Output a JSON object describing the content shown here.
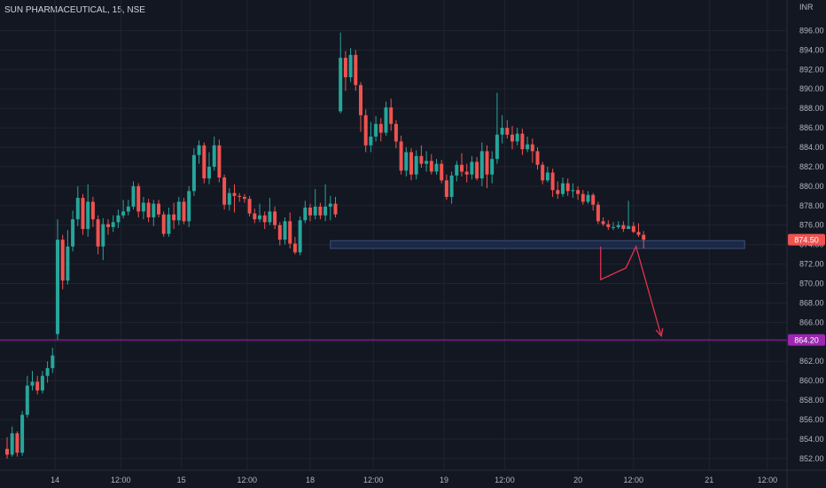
{
  "header": {
    "title": "SUN PHARMACEUTICAL, 15, NSE"
  },
  "colors": {
    "background": "#131722",
    "up": "#26a69a",
    "down": "#ef5350",
    "grid": "#1f2430",
    "axis_text": "#b2b5be",
    "support_zone": "#1e2a48",
    "support_border": "#3a4f80",
    "line_864": "#9c27b0",
    "projection": "#e0334f"
  },
  "chart_data": {
    "type": "candlestick",
    "currency": "INR",
    "ylim": [
      850.8,
      897.5
    ],
    "y_ticks": [
      "896.00",
      "894.00",
      "892.00",
      "890.00",
      "888.00",
      "886.00",
      "884.00",
      "882.00",
      "880.00",
      "878.00",
      "876.00",
      "874.00",
      "872.00",
      "870.00",
      "868.00",
      "866.00",
      "864.00",
      "862.00",
      "860.00",
      "858.00",
      "856.00",
      "854.00",
      "852.00"
    ],
    "x_ticks": [
      {
        "label": "14",
        "index": 9.5
      },
      {
        "label": "12:00",
        "index": 22.5
      },
      {
        "label": "15",
        "index": 34.5
      },
      {
        "label": "12:00",
        "index": 47.5
      },
      {
        "label": "18",
        "index": 60
      },
      {
        "label": "12:00",
        "index": 72.5
      },
      {
        "label": "19",
        "index": 86.5
      },
      {
        "label": "12:00",
        "index": 98.5
      },
      {
        "label": "20",
        "index": 113
      },
      {
        "label": "12:00",
        "index": 124
      },
      {
        "label": "21",
        "index": 139
      },
      {
        "label": "12:00",
        "index": 150.5
      }
    ],
    "candles": [
      [
        853,
        852.4,
        854.2,
        852
      ],
      [
        852.4,
        854.6,
        855.3,
        852.2
      ],
      [
        854.6,
        852.6,
        854.8,
        852.2
      ],
      [
        852.6,
        856.5,
        856.9,
        852.3
      ],
      [
        856.5,
        859.5,
        860.5,
        856.2
      ],
      [
        859.5,
        859.9,
        861,
        859
      ],
      [
        859.9,
        859,
        860.5,
        858.6
      ],
      [
        859,
        860.5,
        861,
        858.7
      ],
      [
        860.5,
        861.3,
        862,
        859.8
      ],
      [
        861.3,
        862.6,
        863.4,
        860.8
      ],
      [
        864.8,
        874.5,
        876.6,
        864.2
      ],
      [
        874.5,
        870.3,
        875,
        869.4
      ],
      [
        870.3,
        873.8,
        875.5,
        869.9
      ],
      [
        873.8,
        876.6,
        877.5,
        873.3
      ],
      [
        876.6,
        878.8,
        880,
        875.9
      ],
      [
        878.8,
        875.6,
        879.2,
        875
      ],
      [
        875.6,
        878.4,
        880.2,
        874.8
      ],
      [
        878.4,
        876.6,
        878.9,
        875.8
      ],
      [
        876.6,
        873.8,
        877,
        873
      ],
      [
        873.8,
        876.1,
        876.7,
        872.4
      ],
      [
        876.1,
        875.8,
        876.6,
        875
      ],
      [
        875.8,
        876.3,
        877,
        875.3
      ],
      [
        876.3,
        877,
        877.6,
        875.7
      ],
      [
        877,
        877.4,
        878.6,
        876.7
      ],
      [
        877.4,
        877.9,
        878.6,
        877
      ],
      [
        877.9,
        880,
        880.5,
        877.6
      ],
      [
        880,
        877.4,
        880.3,
        876.8
      ],
      [
        877.4,
        878.3,
        878.9,
        876.6
      ],
      [
        878.3,
        876.8,
        878.7,
        876.3
      ],
      [
        876.8,
        878.2,
        878.6,
        875.9
      ],
      [
        878.2,
        877.1,
        878.6,
        876.8
      ],
      [
        877.1,
        875.1,
        877.4,
        874.8
      ],
      [
        875.1,
        877.1,
        877.8,
        874.8
      ],
      [
        877.1,
        876.5,
        878.3,
        875.6
      ],
      [
        876.5,
        878.4,
        878.9,
        876
      ],
      [
        878.4,
        876.4,
        878.8,
        876.1
      ],
      [
        876.4,
        879.5,
        880,
        875.8
      ],
      [
        879.5,
        883.2,
        883.9,
        879
      ],
      [
        883.2,
        884.2,
        884.7,
        882.3
      ],
      [
        884.2,
        880.8,
        884.5,
        880.3
      ],
      [
        880.8,
        882,
        883.5,
        880.2
      ],
      [
        882,
        884.2,
        885.1,
        881.6
      ],
      [
        884.2,
        880.9,
        884.8,
        880.4
      ],
      [
        880.9,
        878.1,
        881.2,
        877.6
      ],
      [
        878.1,
        879.3,
        879.8,
        877.5
      ],
      [
        879.3,
        879,
        880.2,
        877.3
      ],
      [
        879,
        878.9,
        879.3,
        878.4
      ],
      [
        878.9,
        878.7,
        879.2,
        878.3
      ],
      [
        878.7,
        877.2,
        879,
        876.9
      ],
      [
        877.2,
        876.6,
        877.7,
        876.2
      ],
      [
        876.6,
        877,
        878.2,
        876.3
      ],
      [
        877,
        876.3,
        877.4,
        875.6
      ],
      [
        876.3,
        877.4,
        878.8,
        876
      ],
      [
        877.4,
        876,
        877.9,
        875.6
      ],
      [
        876,
        874.5,
        876.3,
        873.9
      ],
      [
        874.5,
        876.4,
        876.8,
        874
      ],
      [
        876.4,
        874.1,
        877.3,
        873.6
      ],
      [
        874.1,
        873.2,
        874.8,
        873
      ],
      [
        873.2,
        876.5,
        876.9,
        872.9
      ],
      [
        876.5,
        877.8,
        878.5,
        876.2
      ],
      [
        877.8,
        877,
        878.2,
        876.4
      ],
      [
        877,
        877.9,
        879.7,
        876.6
      ],
      [
        877.9,
        877,
        878.3,
        876.6
      ],
      [
        877,
        877.9,
        880.2,
        876.4
      ],
      [
        877.9,
        878.2,
        879,
        876.5
      ],
      [
        878.2,
        877.1,
        878.9,
        876.8
      ],
      [
        887.7,
        893.2,
        895.8,
        887.5
      ],
      [
        893.2,
        891.2,
        893.9,
        889.8
      ],
      [
        891.2,
        893.5,
        894.2,
        890.7
      ],
      [
        893.5,
        890.4,
        894,
        889.8
      ],
      [
        890.4,
        887.3,
        890.7,
        885.6
      ],
      [
        887.3,
        884.2,
        887.9,
        883.5
      ],
      [
        884.2,
        885.1,
        886.6,
        883.5
      ],
      [
        885.1,
        886.4,
        887.2,
        884.6
      ],
      [
        886.4,
        885.5,
        887,
        884.6
      ],
      [
        885.5,
        888.1,
        888.7,
        885.2
      ],
      [
        888.1,
        886.4,
        889,
        885.7
      ],
      [
        886.4,
        884.6,
        886.8,
        883.9
      ],
      [
        884.6,
        881.6,
        885.2,
        881.2
      ],
      [
        881.6,
        883.5,
        884,
        881
      ],
      [
        883.5,
        881.2,
        883.9,
        880.6
      ],
      [
        881.2,
        883.1,
        883.7,
        880.7
      ],
      [
        883.1,
        882.3,
        884.2,
        881.9
      ],
      [
        882.3,
        882.6,
        883.6,
        881.5
      ],
      [
        882.6,
        881.5,
        883.3,
        881.2
      ],
      [
        881.5,
        882.3,
        882.8,
        881.2
      ],
      [
        882.3,
        880.6,
        882.7,
        880.3
      ],
      [
        880.6,
        878.9,
        881.2,
        878.6
      ],
      [
        878.9,
        881.1,
        881.5,
        878.2
      ],
      [
        881.1,
        882.2,
        882.6,
        880.5
      ],
      [
        882.2,
        881.5,
        883.4,
        881
      ],
      [
        881.5,
        881.2,
        882.3,
        880.4
      ],
      [
        881.2,
        882.5,
        883.1,
        880.7
      ],
      [
        882.5,
        880.8,
        883,
        880.6
      ],
      [
        880.8,
        883.6,
        884.5,
        880
      ],
      [
        883.6,
        881.2,
        884.2,
        879.8
      ],
      [
        881.2,
        882.8,
        883.6,
        880.3
      ],
      [
        882.8,
        885.3,
        889.6,
        882.3
      ],
      [
        885.3,
        886,
        887.3,
        884.4
      ],
      [
        886,
        885.3,
        886.8,
        884.9
      ],
      [
        885.3,
        884.6,
        886.2,
        883.8
      ],
      [
        884.6,
        885.4,
        886,
        884.2
      ],
      [
        885.4,
        883.8,
        885.9,
        883.2
      ],
      [
        883.8,
        884.3,
        885.1,
        883.5
      ],
      [
        884.3,
        883.6,
        884.9,
        882.4
      ],
      [
        883.6,
        882.2,
        884,
        881.7
      ],
      [
        882.2,
        880.6,
        882.5,
        880.2
      ],
      [
        880.6,
        881.4,
        882,
        880.4
      ],
      [
        881.4,
        879.6,
        881.8,
        878.9
      ],
      [
        879.6,
        879.2,
        880.5,
        878.7
      ],
      [
        879.2,
        880.3,
        880.9,
        878.9
      ],
      [
        880.3,
        879.5,
        880.8,
        879
      ],
      [
        879.5,
        879.6,
        880.3,
        878.8
      ],
      [
        879.6,
        879.2,
        880,
        878.6
      ],
      [
        879.2,
        878.4,
        879.6,
        878.1
      ],
      [
        878.4,
        879.1,
        879.5,
        878.2
      ],
      [
        879.1,
        878.1,
        879.3,
        877.5
      ],
      [
        878.1,
        876.4,
        878.4,
        876.1
      ],
      [
        876.4,
        876.1,
        876.8,
        875.9
      ],
      [
        876.1,
        875.8,
        876.5,
        875.5
      ],
      [
        875.8,
        875.8,
        876.3,
        875.5
      ],
      [
        875.8,
        876,
        876.4,
        875.6
      ],
      [
        876,
        875.6,
        876.4,
        875.3
      ],
      [
        875.6,
        875.9,
        878.5,
        875.6
      ],
      [
        875.9,
        875.3,
        876.3,
        875.2
      ],
      [
        875.3,
        875,
        876.2,
        874.8
      ],
      [
        875,
        874.5,
        875.4,
        873.6
      ]
    ],
    "annotations": [
      {
        "type": "zone",
        "label": "support",
        "y1": 874.4,
        "y2": 873.6,
        "from_index": 64,
        "to_index": 146
      },
      {
        "type": "horizontal_line",
        "price": 864.2,
        "label": "864.20"
      },
      {
        "type": "projection",
        "points": [
          [
            117.5,
            873.8
          ],
          [
            117.5,
            870.4
          ],
          [
            122.5,
            871.6
          ],
          [
            124.5,
            873.8
          ],
          [
            129.5,
            864.6
          ]
        ]
      }
    ],
    "last_price": {
      "value": 874.5,
      "label": "874.50"
    }
  }
}
